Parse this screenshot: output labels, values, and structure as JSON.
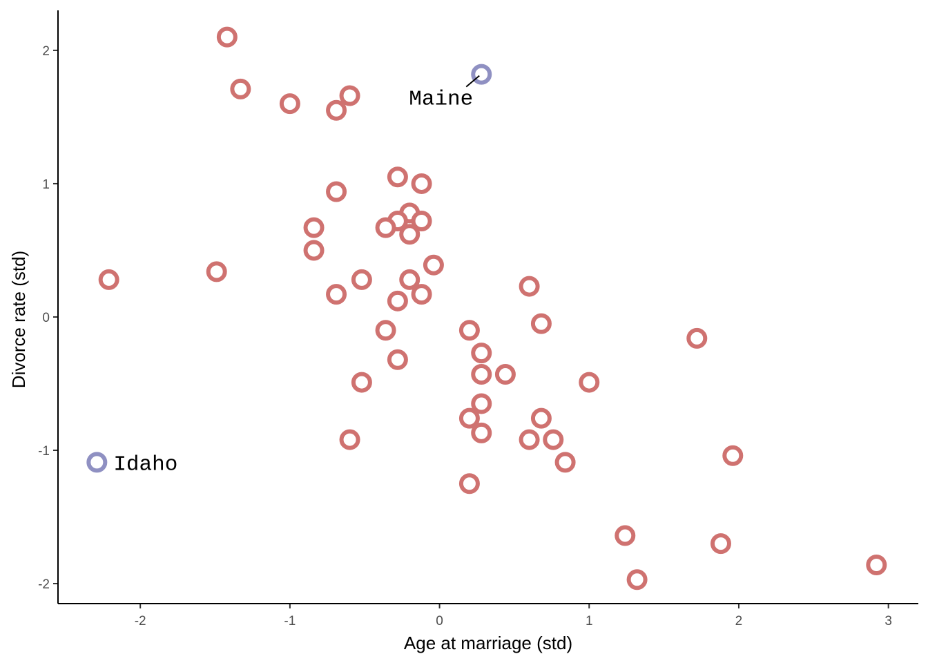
{
  "chart_data": {
    "type": "scatter",
    "title": "",
    "xlabel": "Age at marriage (std)",
    "ylabel": "Divorce rate (std)",
    "xlim": [
      -2.55,
      3.2
    ],
    "ylim": [
      -2.15,
      2.3
    ],
    "xticks": [
      -2,
      -1,
      0,
      1,
      2,
      3
    ],
    "yticks": [
      -2,
      -1,
      0,
      1,
      2
    ],
    "xtick_labels": [
      "-2",
      "-1",
      "0",
      "1",
      "2",
      "3"
    ],
    "ytick_labels": [
      "-2",
      "-1",
      "0",
      "1",
      "2"
    ],
    "grid": false,
    "legend": "none",
    "colors": {
      "default": "#cf7270",
      "highlight": "#8f90c2"
    },
    "points": [
      {
        "x": -1.42,
        "y": 2.1
      },
      {
        "x": -1.33,
        "y": 1.71
      },
      {
        "x": -1.0,
        "y": 1.6
      },
      {
        "x": -0.6,
        "y": 1.66
      },
      {
        "x": -0.69,
        "y": 1.55
      },
      {
        "x": -0.28,
        "y": 1.05
      },
      {
        "x": -0.12,
        "y": 1.0
      },
      {
        "x": -0.69,
        "y": 0.94
      },
      {
        "x": -0.2,
        "y": 0.78
      },
      {
        "x": -0.28,
        "y": 0.72
      },
      {
        "x": -0.12,
        "y": 0.72
      },
      {
        "x": -0.36,
        "y": 0.67
      },
      {
        "x": -0.84,
        "y": 0.67
      },
      {
        "x": -0.2,
        "y": 0.62
      },
      {
        "x": -0.84,
        "y": 0.5
      },
      {
        "x": -0.04,
        "y": 0.39
      },
      {
        "x": -1.49,
        "y": 0.34
      },
      {
        "x": -2.21,
        "y": 0.28
      },
      {
        "x": -0.52,
        "y": 0.28
      },
      {
        "x": -0.2,
        "y": 0.28
      },
      {
        "x": 0.6,
        "y": 0.23
      },
      {
        "x": -0.69,
        "y": 0.17
      },
      {
        "x": -0.12,
        "y": 0.17
      },
      {
        "x": -0.28,
        "y": 0.12
      },
      {
        "x": 0.68,
        "y": -0.05
      },
      {
        "x": -0.36,
        "y": -0.1
      },
      {
        "x": 0.2,
        "y": -0.1
      },
      {
        "x": 1.72,
        "y": -0.16
      },
      {
        "x": 0.28,
        "y": -0.27
      },
      {
        "x": -0.28,
        "y": -0.32
      },
      {
        "x": 0.28,
        "y": -0.43
      },
      {
        "x": 0.44,
        "y": -0.43
      },
      {
        "x": -0.52,
        "y": -0.49
      },
      {
        "x": 1.0,
        "y": -0.49
      },
      {
        "x": 0.28,
        "y": -0.65
      },
      {
        "x": 0.2,
        "y": -0.76
      },
      {
        "x": 0.68,
        "y": -0.76
      },
      {
        "x": 0.28,
        "y": -0.87
      },
      {
        "x": -0.6,
        "y": -0.92
      },
      {
        "x": 0.6,
        "y": -0.92
      },
      {
        "x": 0.76,
        "y": -0.92
      },
      {
        "x": 1.96,
        "y": -1.04
      },
      {
        "x": 0.84,
        "y": -1.09
      },
      {
        "x": 0.2,
        "y": -1.25
      },
      {
        "x": 1.24,
        "y": -1.64
      },
      {
        "x": 1.88,
        "y": -1.7
      },
      {
        "x": 2.92,
        "y": -1.86
      },
      {
        "x": 1.32,
        "y": -1.97
      }
    ],
    "highlighted": [
      {
        "label": "Maine",
        "x": 0.28,
        "y": 1.82
      },
      {
        "label": "Idaho",
        "x": -2.29,
        "y": -1.09
      }
    ]
  }
}
